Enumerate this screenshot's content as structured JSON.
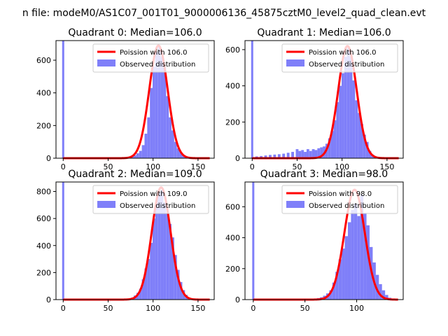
{
  "suptitle": "n file: modeM0/AS1C07_001T01_9000006136_45875cztM0_level2_quad_clean.evt",
  "legend": {
    "poisson_prefix": "Poission with",
    "observed_label": "Observed distribution"
  },
  "colors": {
    "hist": "#7f7ff9",
    "poisson": "#ff0000"
  },
  "chart_data": [
    {
      "type": "bar",
      "title": "Quadrant 0: Median=106.0",
      "median": 106.0,
      "poisson_label": "Poission with 106.0",
      "xlim": [
        -8,
        168
      ],
      "ylim": [
        0,
        720
      ],
      "xticks": [
        0,
        50,
        100,
        150
      ],
      "yticks": [
        0,
        200,
        400,
        600
      ],
      "zero_bar": 720,
      "poisson_peak": 690,
      "hist_left": 70,
      "hist_right": 140,
      "hist": [
        [
          71,
          5
        ],
        [
          74,
          8
        ],
        [
          77,
          12
        ],
        [
          80,
          18
        ],
        [
          83,
          30
        ],
        [
          86,
          45
        ],
        [
          89,
          80
        ],
        [
          92,
          150
        ],
        [
          95,
          250
        ],
        [
          98,
          430
        ],
        [
          101,
          560
        ],
        [
          104,
          650
        ],
        [
          107,
          690
        ],
        [
          110,
          620
        ],
        [
          113,
          560
        ],
        [
          116,
          380
        ],
        [
          119,
          250
        ],
        [
          122,
          170
        ],
        [
          125,
          100
        ],
        [
          128,
          60
        ],
        [
          131,
          35
        ],
        [
          134,
          18
        ],
        [
          137,
          8
        ]
      ]
    },
    {
      "type": "bar",
      "title": "Quadrant 1: Median=106.0",
      "median": 106.0,
      "poisson_label": "Poission with 106.0",
      "xlim": [
        -8,
        168
      ],
      "ylim": [
        0,
        650
      ],
      "xticks": [
        0,
        50,
        100,
        150
      ],
      "yticks": [
        0,
        200,
        400,
        600
      ],
      "zero_bar": 650,
      "poisson_peak": 620,
      "hist_left": 5,
      "hist_right": 140,
      "hist": [
        [
          5,
          10
        ],
        [
          10,
          12
        ],
        [
          15,
          15
        ],
        [
          20,
          18
        ],
        [
          25,
          20
        ],
        [
          30,
          22
        ],
        [
          35,
          25
        ],
        [
          40,
          30
        ],
        [
          45,
          35
        ],
        [
          50,
          50
        ],
        [
          53,
          40
        ],
        [
          56,
          45
        ],
        [
          59,
          35
        ],
        [
          62,
          50
        ],
        [
          65,
          40
        ],
        [
          68,
          50
        ],
        [
          71,
          45
        ],
        [
          74,
          55
        ],
        [
          77,
          60
        ],
        [
          80,
          65
        ],
        [
          83,
          80
        ],
        [
          86,
          110
        ],
        [
          89,
          150
        ],
        [
          92,
          210
        ],
        [
          95,
          310
        ],
        [
          98,
          400
        ],
        [
          101,
          470
        ],
        [
          104,
          560
        ],
        [
          107,
          610
        ],
        [
          110,
          560
        ],
        [
          113,
          430
        ],
        [
          116,
          320
        ],
        [
          119,
          250
        ],
        [
          122,
          190
        ],
        [
          125,
          130
        ],
        [
          128,
          90
        ],
        [
          131,
          40
        ],
        [
          134,
          20
        ],
        [
          137,
          10
        ]
      ]
    },
    {
      "type": "bar",
      "title": "Quadrant 2: Median=109.0",
      "median": 109.0,
      "poisson_label": "Poission with 109.0",
      "xlim": [
        -8,
        168
      ],
      "ylim": [
        0,
        870
      ],
      "xticks": [
        0,
        50,
        100,
        150
      ],
      "yticks": [
        0,
        200,
        400,
        600,
        800
      ],
      "zero_bar": 870,
      "poisson_peak": 830,
      "hist_left": 70,
      "hist_right": 145,
      "hist": [
        [
          71,
          5
        ],
        [
          74,
          8
        ],
        [
          77,
          15
        ],
        [
          80,
          30
        ],
        [
          83,
          50
        ],
        [
          86,
          80
        ],
        [
          89,
          150
        ],
        [
          92,
          230
        ],
        [
          95,
          300
        ],
        [
          98,
          420
        ],
        [
          101,
          600
        ],
        [
          104,
          740
        ],
        [
          107,
          790
        ],
        [
          110,
          810
        ],
        [
          113,
          720
        ],
        [
          116,
          640
        ],
        [
          119,
          560
        ],
        [
          122,
          460
        ],
        [
          125,
          330
        ],
        [
          128,
          220
        ],
        [
          131,
          130
        ],
        [
          134,
          70
        ],
        [
          137,
          35
        ],
        [
          140,
          15
        ],
        [
          143,
          5
        ]
      ]
    },
    {
      "type": "bar",
      "title": "Quadrant 3: Median=98.0",
      "median": 98.0,
      "poisson_label": "Poission with 98.0",
      "xlim": [
        -8,
        145
      ],
      "ylim": [
        0,
        760
      ],
      "xticks": [
        0,
        50,
        100
      ],
      "yticks": [
        0,
        200,
        400,
        600
      ],
      "zero_bar": 760,
      "poisson_peak": 710,
      "hist_left": 55,
      "hist_right": 135,
      "hist": [
        [
          57,
          3
        ],
        [
          60,
          5
        ],
        [
          63,
          10
        ],
        [
          66,
          15
        ],
        [
          69,
          25
        ],
        [
          72,
          40
        ],
        [
          75,
          60
        ],
        [
          78,
          110
        ],
        [
          81,
          180
        ],
        [
          84,
          260
        ],
        [
          87,
          330
        ],
        [
          90,
          410
        ],
        [
          93,
          500
        ],
        [
          96,
          580
        ],
        [
          99,
          620
        ],
        [
          102,
          540
        ],
        [
          105,
          680
        ],
        [
          108,
          560
        ],
        [
          111,
          480
        ],
        [
          114,
          340
        ],
        [
          117,
          240
        ],
        [
          120,
          160
        ],
        [
          123,
          100
        ],
        [
          126,
          60
        ],
        [
          129,
          30
        ],
        [
          132,
          12
        ]
      ]
    }
  ]
}
